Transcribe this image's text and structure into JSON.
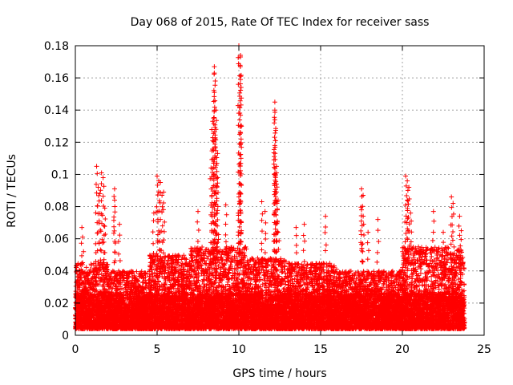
{
  "chart_data": {
    "type": "scatter",
    "title": "Day 068 of 2015, Rate Of TEC Index for receiver sass",
    "xlabel": "GPS time / hours",
    "ylabel": "ROTI / TECUs",
    "xlim": [
      0,
      25
    ],
    "ylim": [
      0,
      0.18
    ],
    "xticks": [
      0,
      5,
      10,
      15,
      20,
      25
    ],
    "xtick_labels": [
      "0",
      "5",
      "10",
      "15",
      "20",
      "25"
    ],
    "yticks": [
      0,
      0.02,
      0.04,
      0.06,
      0.08,
      0.1,
      0.12,
      0.14,
      0.16,
      0.18
    ],
    "ytick_labels": [
      "0",
      "0.02",
      "0.04",
      "0.06",
      "0.08",
      "0.1",
      "0.12",
      "0.14",
      "0.16",
      "0.18"
    ],
    "grid": true,
    "marker": "+",
    "color": "#ff0000",
    "x_data_range": [
      0,
      23.8
    ],
    "series": [
      {
        "name": "ROTI",
        "points": [
          [
            1.3,
            0.105
          ],
          [
            1.4,
            0.092
          ],
          [
            1.5,
            0.088
          ],
          [
            1.6,
            0.101
          ],
          [
            1.7,
            0.098
          ],
          [
            1.8,
            0.079
          ],
          [
            2.4,
            0.091
          ],
          [
            2.4,
            0.084
          ],
          [
            0.4,
            0.067
          ],
          [
            0.5,
            0.052
          ],
          [
            2.7,
            0.069
          ],
          [
            4.8,
            0.076
          ],
          [
            5.0,
            0.099
          ],
          [
            5.1,
            0.096
          ],
          [
            5.2,
            0.095
          ],
          [
            5.3,
            0.087
          ],
          [
            5.4,
            0.089
          ],
          [
            7.5,
            0.077
          ],
          [
            8.3,
            0.104
          ],
          [
            8.4,
            0.133
          ],
          [
            8.4,
            0.121
          ],
          [
            8.5,
            0.151
          ],
          [
            8.5,
            0.167
          ],
          [
            8.5,
            0.163
          ],
          [
            8.6,
            0.14
          ],
          [
            8.6,
            0.128
          ],
          [
            8.7,
            0.113
          ],
          [
            8.7,
            0.098
          ],
          [
            9.2,
            0.081
          ],
          [
            10.0,
            0.18
          ],
          [
            10.1,
            0.173
          ],
          [
            10.1,
            0.174
          ],
          [
            10.1,
            0.159
          ],
          [
            10.1,
            0.119
          ],
          [
            10.0,
            0.086
          ],
          [
            11.4,
            0.083
          ],
          [
            11.6,
            0.077
          ],
          [
            12.2,
            0.145
          ],
          [
            12.2,
            0.14
          ],
          [
            12.2,
            0.134
          ],
          [
            12.2,
            0.118
          ],
          [
            12.3,
            0.105
          ],
          [
            12.3,
            0.101
          ],
          [
            12.3,
            0.094
          ],
          [
            12.4,
            0.084
          ],
          [
            13.5,
            0.067
          ],
          [
            14.0,
            0.069
          ],
          [
            15.3,
            0.074
          ],
          [
            17.5,
            0.091
          ],
          [
            17.6,
            0.087
          ],
          [
            17.5,
            0.078
          ],
          [
            17.9,
            0.064
          ],
          [
            18.5,
            0.072
          ],
          [
            20.2,
            0.099
          ],
          [
            20.3,
            0.096
          ],
          [
            20.4,
            0.092
          ],
          [
            20.3,
            0.084
          ],
          [
            20.5,
            0.076
          ],
          [
            21.9,
            0.077
          ],
          [
            22.5,
            0.064
          ],
          [
            23.0,
            0.086
          ],
          [
            23.1,
            0.082
          ],
          [
            23.5,
            0.074
          ],
          [
            23.6,
            0.065
          ]
        ],
        "dense_bands": [
          {
            "x": [
              0.0,
              2.0
            ],
            "y_max": 0.045
          },
          {
            "x": [
              2.0,
              4.5
            ],
            "y_max": 0.04
          },
          {
            "x": [
              4.5,
              7.0
            ],
            "y_max": 0.05
          },
          {
            "x": [
              7.0,
              10.5
            ],
            "y_max": 0.055
          },
          {
            "x": [
              10.5,
              13.0
            ],
            "y_max": 0.048
          },
          {
            "x": [
              13.0,
              16.0
            ],
            "y_max": 0.045
          },
          {
            "x": [
              16.0,
              20.0
            ],
            "y_max": 0.04
          },
          {
            "x": [
              20.0,
              23.8
            ],
            "y_max": 0.055
          }
        ]
      }
    ]
  }
}
